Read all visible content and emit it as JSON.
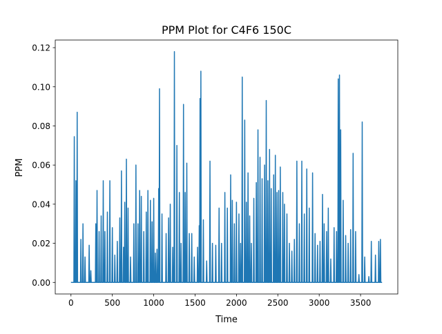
{
  "chart_data": {
    "type": "line",
    "title": "PPM Plot for C4F6 150C",
    "xlabel": "Time",
    "ylabel": "PPM",
    "xlim": [
      -190,
      3950
    ],
    "ylim": [
      -0.0059,
      0.1239
    ],
    "xticks": [
      0,
      500,
      1000,
      1500,
      2000,
      2500,
      3000,
      3500
    ],
    "xtick_labels": [
      "0",
      "500",
      "1000",
      "1500",
      "2000",
      "2500",
      "3000",
      "3500"
    ],
    "yticks": [
      0.0,
      0.02,
      0.04,
      0.06,
      0.08,
      0.1,
      0.12
    ],
    "ytick_labels": [
      "0.00",
      "0.02",
      "0.04",
      "0.06",
      "0.08",
      "0.10",
      "0.12"
    ],
    "grid": false,
    "colors": {
      "line": "#1f77b4"
    },
    "series": [
      {
        "spikes": [
          [
            40,
            0.0745
          ],
          [
            60,
            0.052
          ],
          [
            75,
            0.087
          ],
          [
            120,
            0.022
          ],
          [
            145,
            0.03
          ],
          [
            170,
            0.013
          ],
          [
            220,
            0.019
          ],
          [
            240,
            0.006
          ],
          [
            300,
            0.03
          ],
          [
            315,
            0.047
          ],
          [
            340,
            0.026
          ],
          [
            365,
            0.034
          ],
          [
            390,
            0.052
          ],
          [
            410,
            0.026
          ],
          [
            440,
            0.036
          ],
          [
            470,
            0.052
          ],
          [
            500,
            0.028
          ],
          [
            530,
            0.014
          ],
          [
            560,
            0.021
          ],
          [
            590,
            0.033
          ],
          [
            610,
            0.057
          ],
          [
            635,
            0.018
          ],
          [
            650,
            0.041
          ],
          [
            670,
            0.063
          ],
          [
            690,
            0.038
          ],
          [
            720,
            0.013
          ],
          [
            760,
            0.03
          ],
          [
            785,
            0.06
          ],
          [
            810,
            0.03
          ],
          [
            830,
            0.047
          ],
          [
            850,
            0.044
          ],
          [
            880,
            0.026
          ],
          [
            910,
            0.036
          ],
          [
            930,
            0.047
          ],
          [
            960,
            0.042
          ],
          [
            980,
            0.031
          ],
          [
            1000,
            0.043
          ],
          [
            1020,
            0.015
          ],
          [
            1040,
            0.017
          ],
          [
            1060,
            0.048
          ],
          [
            1070,
            0.099
          ],
          [
            1100,
            0.035
          ],
          [
            1150,
            0.025
          ],
          [
            1180,
            0.033
          ],
          [
            1200,
            0.04
          ],
          [
            1230,
            0.018
          ],
          [
            1250,
            0.118
          ],
          [
            1280,
            0.07
          ],
          [
            1310,
            0.046
          ],
          [
            1330,
            0.02
          ],
          [
            1360,
            0.091
          ],
          [
            1380,
            0.046
          ],
          [
            1400,
            0.061
          ],
          [
            1430,
            0.025
          ],
          [
            1460,
            0.025
          ],
          [
            1490,
            0.013
          ],
          [
            1530,
            0.018
          ],
          [
            1550,
            0.029
          ],
          [
            1560,
            0.094
          ],
          [
            1570,
            0.108
          ],
          [
            1600,
            0.032
          ],
          [
            1640,
            0.011
          ],
          [
            1680,
            0.062
          ],
          [
            1710,
            0.02
          ],
          [
            1750,
            0.019
          ],
          [
            1790,
            0.038
          ],
          [
            1820,
            0.02
          ],
          [
            1860,
            0.046
          ],
          [
            1890,
            0.038
          ],
          [
            1930,
            0.055
          ],
          [
            1950,
            0.042
          ],
          [
            1975,
            0.03
          ],
          [
            2000,
            0.041
          ],
          [
            2030,
            0.035
          ],
          [
            2050,
            0.02
          ],
          [
            2070,
            0.105
          ],
          [
            2100,
            0.083
          ],
          [
            2120,
            0.041
          ],
          [
            2140,
            0.056
          ],
          [
            2160,
            0.034
          ],
          [
            2180,
            0.02
          ],
          [
            2210,
            0.043
          ],
          [
            2240,
            0.051
          ],
          [
            2260,
            0.078
          ],
          [
            2285,
            0.064
          ],
          [
            2310,
            0.053
          ],
          [
            2340,
            0.06
          ],
          [
            2360,
            0.093
          ],
          [
            2380,
            0.052
          ],
          [
            2400,
            0.068
          ],
          [
            2420,
            0.048
          ],
          [
            2450,
            0.055
          ],
          [
            2470,
            0.065
          ],
          [
            2490,
            0.046
          ],
          [
            2510,
            0.047
          ],
          [
            2530,
            0.059
          ],
          [
            2560,
            0.046
          ],
          [
            2580,
            0.04
          ],
          [
            2610,
            0.035
          ],
          [
            2640,
            0.02
          ],
          [
            2670,
            0.016
          ],
          [
            2700,
            0.022
          ],
          [
            2730,
            0.062
          ],
          [
            2760,
            0.03
          ],
          [
            2790,
            0.062
          ],
          [
            2820,
            0.035
          ],
          [
            2850,
            0.058
          ],
          [
            2880,
            0.038
          ],
          [
            2920,
            0.056
          ],
          [
            2950,
            0.025
          ],
          [
            2980,
            0.019
          ],
          [
            3010,
            0.021
          ],
          [
            3040,
            0.045
          ],
          [
            3060,
            0.03
          ],
          [
            3090,
            0.026
          ],
          [
            3110,
            0.038
          ],
          [
            3140,
            0.012
          ],
          [
            3180,
            0.028
          ],
          [
            3210,
            0.026
          ],
          [
            3230,
            0.104
          ],
          [
            3245,
            0.106
          ],
          [
            3260,
            0.078
          ],
          [
            3290,
            0.042
          ],
          [
            3320,
            0.024
          ],
          [
            3350,
            0.02
          ],
          [
            3380,
            0.027
          ],
          [
            3410,
            0.066
          ],
          [
            3440,
            0.026
          ],
          [
            3480,
            0.004
          ],
          [
            3520,
            0.082
          ],
          [
            3550,
            0.013
          ],
          [
            3600,
            0.003
          ],
          [
            3630,
            0.021
          ],
          [
            3680,
            0.014
          ],
          [
            3720,
            0.021
          ],
          [
            3740,
            0.022
          ]
        ],
        "x_end": 3760
      }
    ]
  }
}
